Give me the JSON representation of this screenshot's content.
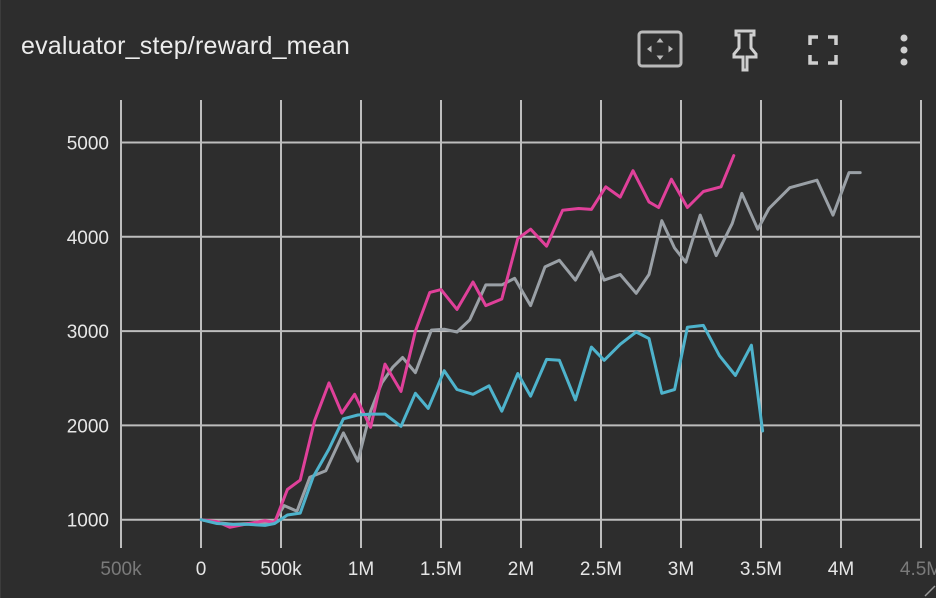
{
  "card": {
    "title": "evaluator_step/reward_mean"
  },
  "toolbar": {
    "items": [
      {
        "icon": "fit-domain-icon"
      },
      {
        "icon": "pin-icon"
      },
      {
        "icon": "fullscreen-icon"
      },
      {
        "icon": "more-vert-icon"
      }
    ]
  },
  "colors": {
    "background": "#2d2d2d",
    "grid": "#bdbdbd",
    "text": "#e6e6e6"
  },
  "chart_data": {
    "type": "line",
    "title": "evaluator_step/reward_mean",
    "xlabel": "",
    "ylabel": "",
    "xlim": [
      -500000,
      4500000
    ],
    "ylim": [
      700,
      5450
    ],
    "x_ticks": [
      {
        "value": -500000,
        "label": "500k",
        "faded": true
      },
      {
        "value": 0,
        "label": "0"
      },
      {
        "value": 500000,
        "label": "500k"
      },
      {
        "value": 1000000,
        "label": "1M"
      },
      {
        "value": 1500000,
        "label": "1.5M"
      },
      {
        "value": 2000000,
        "label": "2M"
      },
      {
        "value": 2500000,
        "label": "2.5M"
      },
      {
        "value": 3000000,
        "label": "3M"
      },
      {
        "value": 3500000,
        "label": "3.5M"
      },
      {
        "value": 4000000,
        "label": "4M"
      },
      {
        "value": 4500000,
        "label": "4.5M",
        "faded": true
      }
    ],
    "y_ticks": [
      {
        "value": 1000,
        "label": "1000"
      },
      {
        "value": 2000,
        "label": "2000"
      },
      {
        "value": 3000,
        "label": "3000"
      },
      {
        "value": 4000,
        "label": "4000"
      },
      {
        "value": 5000,
        "label": "5000"
      }
    ],
    "grid": true,
    "series": [
      {
        "color": "#9aa0a6",
        "points": [
          [
            0,
            1000
          ],
          [
            100000,
            970
          ],
          [
            200000,
            950
          ],
          [
            300000,
            960
          ],
          [
            400000,
            960
          ],
          [
            450000,
            960
          ],
          [
            520000,
            1150
          ],
          [
            600000,
            1090
          ],
          [
            680000,
            1450
          ],
          [
            780000,
            1520
          ],
          [
            890000,
            1920
          ],
          [
            980000,
            1620
          ],
          [
            1060000,
            2150
          ],
          [
            1130000,
            2450
          ],
          [
            1200000,
            2620
          ],
          [
            1260000,
            2720
          ],
          [
            1340000,
            2560
          ],
          [
            1440000,
            3010
          ],
          [
            1520000,
            3020
          ],
          [
            1600000,
            2990
          ],
          [
            1680000,
            3120
          ],
          [
            1780000,
            3490
          ],
          [
            1880000,
            3490
          ],
          [
            1960000,
            3560
          ],
          [
            2060000,
            3270
          ],
          [
            2150000,
            3680
          ],
          [
            2240000,
            3750
          ],
          [
            2340000,
            3540
          ],
          [
            2440000,
            3840
          ],
          [
            2520000,
            3540
          ],
          [
            2620000,
            3600
          ],
          [
            2720000,
            3400
          ],
          [
            2800000,
            3600
          ],
          [
            2880000,
            4170
          ],
          [
            2960000,
            3880
          ],
          [
            3030000,
            3730
          ],
          [
            3120000,
            4230
          ],
          [
            3220000,
            3800
          ],
          [
            3320000,
            4140
          ],
          [
            3380000,
            4460
          ],
          [
            3480000,
            4080
          ],
          [
            3550000,
            4300
          ],
          [
            3680000,
            4520
          ],
          [
            3850000,
            4600
          ],
          [
            3950000,
            4230
          ],
          [
            4050000,
            4680
          ],
          [
            4120000,
            4680
          ]
        ]
      },
      {
        "color": "#e0409a",
        "points": [
          [
            0,
            1000
          ],
          [
            100000,
            980
          ],
          [
            180000,
            920
          ],
          [
            300000,
            960
          ],
          [
            400000,
            990
          ],
          [
            460000,
            970
          ],
          [
            540000,
            1320
          ],
          [
            620000,
            1420
          ],
          [
            710000,
            2050
          ],
          [
            800000,
            2450
          ],
          [
            880000,
            2130
          ],
          [
            960000,
            2330
          ],
          [
            1060000,
            1980
          ],
          [
            1150000,
            2650
          ],
          [
            1250000,
            2360
          ],
          [
            1340000,
            3000
          ],
          [
            1430000,
            3410
          ],
          [
            1500000,
            3440
          ],
          [
            1600000,
            3230
          ],
          [
            1700000,
            3520
          ],
          [
            1780000,
            3270
          ],
          [
            1880000,
            3340
          ],
          [
            1980000,
            3980
          ],
          [
            2060000,
            4080
          ],
          [
            2160000,
            3900
          ],
          [
            2260000,
            4280
          ],
          [
            2360000,
            4300
          ],
          [
            2440000,
            4290
          ],
          [
            2530000,
            4530
          ],
          [
            2620000,
            4420
          ],
          [
            2700000,
            4700
          ],
          [
            2800000,
            4370
          ],
          [
            2860000,
            4310
          ],
          [
            2940000,
            4610
          ],
          [
            3040000,
            4310
          ],
          [
            3140000,
            4480
          ],
          [
            3250000,
            4530
          ],
          [
            3330000,
            4860
          ]
        ]
      },
      {
        "color": "#4eb3cc",
        "points": [
          [
            0,
            1000
          ],
          [
            100000,
            960
          ],
          [
            200000,
            950
          ],
          [
            300000,
            950
          ],
          [
            400000,
            940
          ],
          [
            460000,
            960
          ],
          [
            540000,
            1050
          ],
          [
            620000,
            1070
          ],
          [
            700000,
            1450
          ],
          [
            800000,
            1750
          ],
          [
            890000,
            2070
          ],
          [
            980000,
            2110
          ],
          [
            1060000,
            2120
          ],
          [
            1150000,
            2120
          ],
          [
            1250000,
            1990
          ],
          [
            1340000,
            2340
          ],
          [
            1420000,
            2180
          ],
          [
            1520000,
            2580
          ],
          [
            1600000,
            2380
          ],
          [
            1700000,
            2330
          ],
          [
            1800000,
            2420
          ],
          [
            1880000,
            2150
          ],
          [
            1980000,
            2550
          ],
          [
            2060000,
            2310
          ],
          [
            2160000,
            2700
          ],
          [
            2240000,
            2690
          ],
          [
            2340000,
            2270
          ],
          [
            2440000,
            2830
          ],
          [
            2520000,
            2690
          ],
          [
            2620000,
            2860
          ],
          [
            2720000,
            2990
          ],
          [
            2800000,
            2920
          ],
          [
            2880000,
            2340
          ],
          [
            2960000,
            2380
          ],
          [
            3040000,
            3040
          ],
          [
            3140000,
            3060
          ],
          [
            3240000,
            2740
          ],
          [
            3340000,
            2530
          ],
          [
            3440000,
            2850
          ],
          [
            3510000,
            1940
          ]
        ]
      }
    ]
  }
}
